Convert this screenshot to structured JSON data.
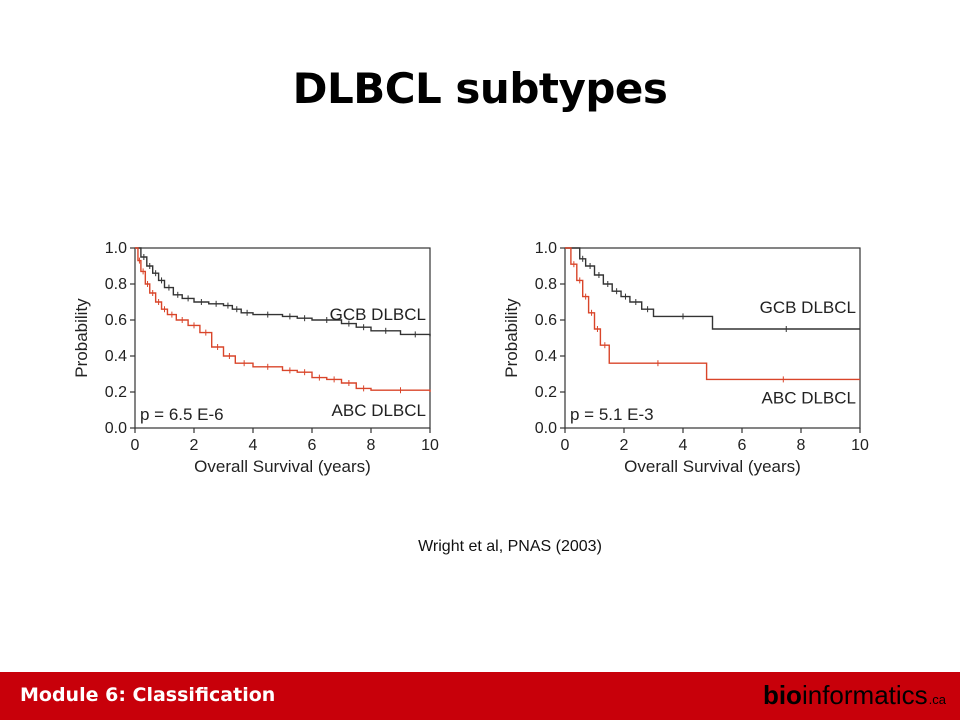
{
  "slide": {
    "title": "DLBCL subtypes",
    "citation": "Wright et al, PNAS (2003)"
  },
  "footer": {
    "module": "Module 6: Classification",
    "brand_bio": "bio",
    "brand_informatics": "informatics",
    "brand_tld": ".ca"
  },
  "colors": {
    "gcb_line": "#333333",
    "abc_line": "#d9452a",
    "footer_bg": "#c8000a"
  },
  "chart_data": [
    {
      "type": "line",
      "xlabel": "Overall Survival (years)",
      "ylabel": "Probability",
      "xlim": [
        0,
        10
      ],
      "ylim": [
        0,
        1
      ],
      "xticks": [
        0,
        2,
        4,
        6,
        8,
        10
      ],
      "yticks": [
        0.0,
        0.2,
        0.4,
        0.6,
        0.8,
        1.0
      ],
      "ytick_labels": [
        "0.0",
        "0.2",
        "0.4",
        "0.6",
        "0.8",
        "1.0"
      ],
      "grid": false,
      "annotation": "p = 6.5 E-6",
      "series": [
        {
          "name": "GCB DLBCL",
          "color": "#333333",
          "x": [
            0,
            0.2,
            0.4,
            0.6,
            0.8,
            1.0,
            1.3,
            1.6,
            2.0,
            2.5,
            3.0,
            3.3,
            3.6,
            4.0,
            5.0,
            5.5,
            6.0,
            7.0,
            7.5,
            8.0,
            9.0,
            10.0
          ],
          "y": [
            1.0,
            0.95,
            0.9,
            0.86,
            0.82,
            0.78,
            0.74,
            0.72,
            0.7,
            0.69,
            0.68,
            0.66,
            0.64,
            0.63,
            0.62,
            0.61,
            0.6,
            0.58,
            0.56,
            0.54,
            0.52,
            0.51
          ]
        },
        {
          "name": "ABC DLBCL",
          "color": "#d9452a",
          "x": [
            0,
            0.1,
            0.2,
            0.35,
            0.5,
            0.7,
            0.9,
            1.1,
            1.4,
            1.8,
            2.2,
            2.6,
            3.0,
            3.4,
            4.0,
            5.0,
            5.5,
            6.0,
            6.5,
            7.0,
            7.5,
            8.0,
            10.0
          ],
          "y": [
            1.0,
            0.93,
            0.87,
            0.8,
            0.75,
            0.7,
            0.66,
            0.63,
            0.6,
            0.57,
            0.53,
            0.45,
            0.4,
            0.36,
            0.34,
            0.32,
            0.31,
            0.28,
            0.27,
            0.25,
            0.22,
            0.21,
            0.2
          ]
        }
      ]
    },
    {
      "type": "line",
      "xlabel": "Overall Survival (years)",
      "ylabel": "Probability",
      "xlim": [
        0,
        10
      ],
      "ylim": [
        0,
        1
      ],
      "xticks": [
        0,
        2,
        4,
        6,
        8,
        10
      ],
      "yticks": [
        0.0,
        0.2,
        0.4,
        0.6,
        0.8,
        1.0
      ],
      "ytick_labels": [
        "0.0",
        "0.2",
        "0.4",
        "0.6",
        "0.8",
        "1.0"
      ],
      "grid": false,
      "annotation": "p = 5.1 E-3",
      "series": [
        {
          "name": "GCB DLBCL",
          "color": "#333333",
          "x": [
            0,
            0.5,
            0.7,
            1.0,
            1.3,
            1.6,
            1.9,
            2.2,
            2.6,
            3.0,
            5.0,
            10.0
          ],
          "y": [
            1.0,
            0.94,
            0.9,
            0.85,
            0.8,
            0.76,
            0.73,
            0.7,
            0.66,
            0.62,
            0.55,
            0.55
          ]
        },
        {
          "name": "ABC DLBCL",
          "color": "#d9452a",
          "x": [
            0,
            0.2,
            0.4,
            0.6,
            0.8,
            1.0,
            1.2,
            1.5,
            4.8,
            10.0
          ],
          "y": [
            1.0,
            0.91,
            0.82,
            0.73,
            0.64,
            0.55,
            0.46,
            0.36,
            0.27,
            0.27
          ]
        }
      ]
    }
  ]
}
